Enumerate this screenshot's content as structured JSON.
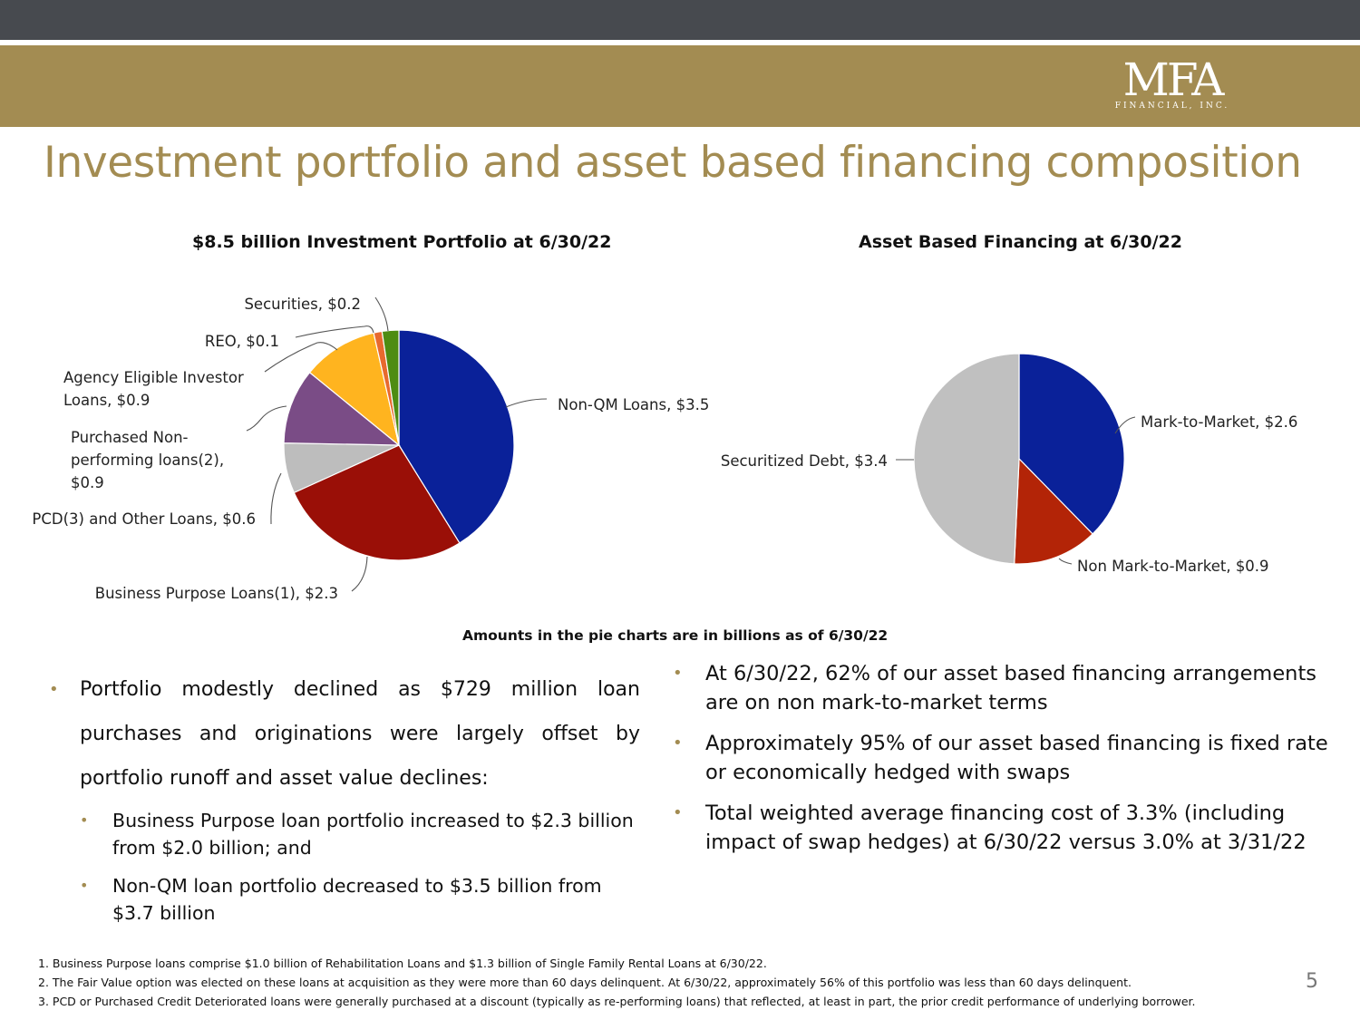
{
  "header": {
    "logo_text": "MFA",
    "logo_sub": "FINANCIAL, INC."
  },
  "title": "Investment portfolio and asset based financing composition",
  "chart_data": [
    {
      "type": "pie",
      "title": "$8.5 billion Investment Portfolio at 6/30/22",
      "slices": [
        {
          "label": "Non-QM Loans, $3.5",
          "name": "Non-QM Loans",
          "value": 3.5,
          "color": "#0a2199"
        },
        {
          "label": "Business Purpose Loans(1), $2.3",
          "name": "Business Purpose Loans(1)",
          "value": 2.3,
          "color": "#9a0f07"
        },
        {
          "label": "PCD(3) and Other Loans, $0.6",
          "name": "PCD(3) and Other Loans",
          "value": 0.6,
          "color": "#bdbdbd"
        },
        {
          "label": "Purchased Non-|performing loans(2),|$0.9",
          "name": "Purchased Non-performing loans(2)",
          "value": 0.9,
          "color": "#7a4c86"
        },
        {
          "label": "Agency Eligible Investor|Loans, $0.9",
          "name": "Agency Eligible Investor Loans",
          "value": 0.9,
          "color": "#ffb41f"
        },
        {
          "label": "REO, $0.1",
          "name": "REO",
          "value": 0.1,
          "color": "#e86a2e"
        },
        {
          "label": "Securities, $0.2",
          "name": "Securities",
          "value": 0.2,
          "color": "#4e8c12"
        }
      ]
    },
    {
      "type": "pie",
      "title": "Asset Based Financing  at 6/30/22",
      "slices": [
        {
          "label": "Mark-to-Market, $2.6",
          "name": "Mark-to-Market",
          "value": 2.6,
          "color": "#0a2199"
        },
        {
          "label": "Non Mark-to-Market, $0.9",
          "name": "Non Mark-to-Market",
          "value": 0.9,
          "color": "#b32407"
        },
        {
          "label": "Securitized Debt, $3.4",
          "name": "Securitized Debt",
          "value": 3.4,
          "color": "#c0c0c0"
        }
      ]
    }
  ],
  "amounts_note": "Amounts in the pie charts are in billions as of 6/30/22",
  "left_bullets": {
    "main": "Portfolio modestly declined as $729 million loan purchases and originations were largely offset by portfolio runoff and asset value declines:",
    "subs": [
      "Business Purpose loan portfolio increased to $2.3 billion from $2.0 billion; and",
      "Non-QM loan portfolio decreased to $3.5 billion from $3.7 billion"
    ]
  },
  "right_bullets": [
    "At 6/30/22, 62% of our asset based financing arrangements are on non mark-to-market terms",
    "Approximately 95% of our asset based financing is fixed rate or economically hedged with swaps",
    "Total weighted average financing cost of 3.3% (including impact of swap hedges) at 6/30/22 versus 3.0% at 3/31/22"
  ],
  "bullet_char": "•",
  "footnotes": [
    "1. Business Purpose loans comprise $1.0 billion of Rehabilitation Loans and $1.3 billion of Single Family Rental Loans at 6/30/22.",
    "2. The Fair Value option was elected on these loans at acquisition as they were more than 60 days delinquent. At 6/30/22, approximately 56% of this portfolio was less than 60 days delinquent.",
    "3. PCD or Purchased Credit Deteriorated loans were generally purchased at a discount (typically as re-performing loans) that reflected, at least in part, the prior credit performance of underlying borrower."
  ],
  "page_number": "5"
}
